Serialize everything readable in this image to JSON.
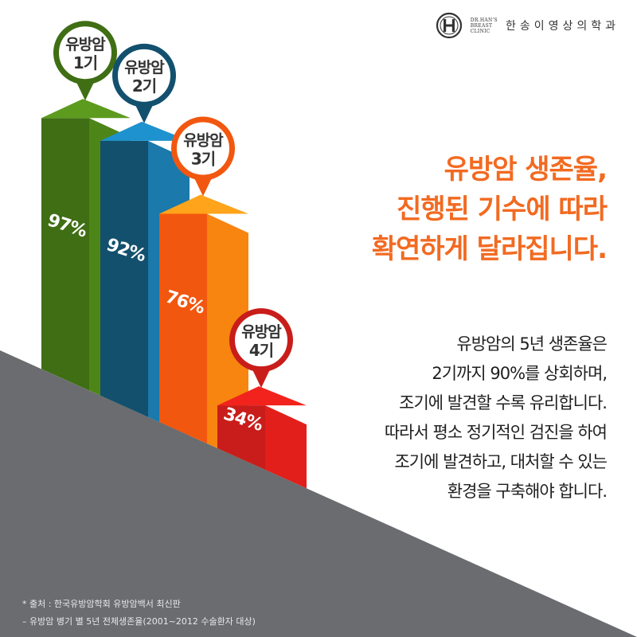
{
  "brand": {
    "logo_icon": "dr-han-logo-icon",
    "sub_lines": [
      "Dr.Han's",
      "Breast",
      "Clinic"
    ],
    "name": "한송이영상의학과"
  },
  "headline": {
    "lines": [
      "유방암 생존율,",
      "진행된 기수에 따라",
      "확연하게 달라집니다."
    ],
    "color": "#f26a21"
  },
  "description": {
    "lines": [
      "유방암의 5년 생존율은",
      "2기까지 90%를 상회하며,",
      "조기에 발견할 수록 유리합니다.",
      "따라서 평소 정기적인 검진을 하여",
      "조기에 발견하고, 대처할 수 있는",
      "환경을 구축해야 합니다."
    ]
  },
  "footnotes": [
    "* 출처 : 한국유방암학회 유방암백서 최신판",
    "– 유방암 병기 별 5년 전체생존율(2001~2012 수술환자 대상)"
  ],
  "chart_data": {
    "type": "bar",
    "categories": [
      "유방암\n1기",
      "유방암\n2기",
      "유방암\n3기",
      "유방암\n4기"
    ],
    "values": [
      97,
      92,
      76,
      34
    ],
    "value_labels": [
      "97%",
      "92%",
      "76%",
      "34%"
    ],
    "unit": "%",
    "colors": {
      "front": [
        "#3f6e14",
        "#12506e",
        "#f2570f",
        "#c81d1a"
      ],
      "top": [
        "#5d9b1f",
        "#1e92cf",
        "#ffa41b",
        "#f2231d"
      ],
      "side": [
        "#4e8518",
        "#1b79ab",
        "#f7850f",
        "#e21f1a"
      ],
      "ring": [
        "#3f6e14",
        "#12506e",
        "#f2570f",
        "#c81d1a"
      ]
    },
    "floor_color": "#6b6c70",
    "title": "",
    "xlabel": "",
    "ylabel": ""
  }
}
